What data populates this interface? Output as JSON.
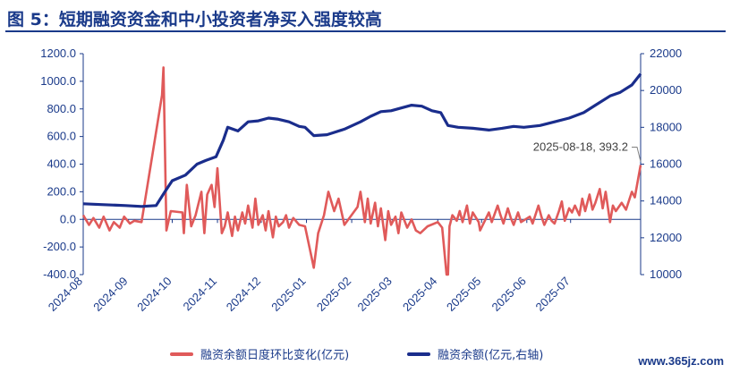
{
  "title": "图 5：短期融资资金和中小投资者净买入强度较高",
  "watermark": "www.365jz.com",
  "chart_data": {
    "type": "line",
    "x_ticks": [
      "2024-08",
      "2024-09",
      "2024-10",
      "2024-11",
      "2024-12",
      "2025-01",
      "2025-02",
      "2025-03",
      "2025-04",
      "2025-05",
      "2025-06",
      "2025-07"
    ],
    "x_range": [
      "2024-08-01",
      "2025-08-18"
    ],
    "y_left": {
      "ticks": [
        "1200.0",
        "1000.0",
        "800.0",
        "600.0",
        "400.0",
        "200.0",
        "0.0",
        "-200.0",
        "-400.0"
      ],
      "ylim": [
        -400,
        1200
      ]
    },
    "y_right": {
      "ticks": [
        "22000",
        "20000",
        "18000",
        "16000",
        "14000",
        "12000",
        "10000"
      ],
      "ylim": [
        10000,
        22000
      ]
    },
    "annotation": {
      "text": "2025-08-18, 393.2",
      "date": "2025-08-18",
      "value": 393.2
    },
    "series": [
      {
        "name": "融资余额日度环比变化(亿元)",
        "axis": "left",
        "color": "#e05a5a",
        "points": [
          [
            "2024-08-01",
            30
          ],
          [
            "2024-08-05",
            -40
          ],
          [
            "2024-08-08",
            10
          ],
          [
            "2024-08-12",
            -60
          ],
          [
            "2024-08-15",
            20
          ],
          [
            "2024-08-19",
            -80
          ],
          [
            "2024-08-22",
            -20
          ],
          [
            "2024-08-26",
            -60
          ],
          [
            "2024-08-29",
            20
          ],
          [
            "2024-09-02",
            -30
          ],
          [
            "2024-09-05",
            -10
          ],
          [
            "2024-09-10",
            -20
          ],
          [
            "2024-09-24",
            900
          ],
          [
            "2024-09-25",
            1100
          ],
          [
            "2024-09-27",
            -80
          ],
          [
            "2024-09-30",
            60
          ],
          [
            "2024-10-08",
            50
          ],
          [
            "2024-10-09",
            -100
          ],
          [
            "2024-10-11",
            250
          ],
          [
            "2024-10-14",
            -50
          ],
          [
            "2024-10-17",
            30
          ],
          [
            "2024-10-21",
            200
          ],
          [
            "2024-10-23",
            -100
          ],
          [
            "2024-10-25",
            180
          ],
          [
            "2024-10-28",
            250
          ],
          [
            "2024-10-30",
            90
          ],
          [
            "2024-11-01",
            370
          ],
          [
            "2024-11-04",
            -100
          ],
          [
            "2024-11-06",
            -50
          ],
          [
            "2024-11-08",
            50
          ],
          [
            "2024-11-11",
            -120
          ],
          [
            "2024-11-13",
            20
          ],
          [
            "2024-11-15",
            -80
          ],
          [
            "2024-11-18",
            50
          ],
          [
            "2024-11-20",
            -30
          ],
          [
            "2024-11-22",
            100
          ],
          [
            "2024-11-25",
            -60
          ],
          [
            "2024-11-27",
            150
          ],
          [
            "2024-11-29",
            -40
          ],
          [
            "2024-12-02",
            30
          ],
          [
            "2024-12-04",
            -80
          ],
          [
            "2024-12-06",
            60
          ],
          [
            "2024-12-09",
            -130
          ],
          [
            "2024-12-11",
            20
          ],
          [
            "2024-12-13",
            -50
          ],
          [
            "2024-12-16",
            -20
          ],
          [
            "2024-12-18",
            30
          ],
          [
            "2024-12-20",
            -60
          ],
          [
            "2024-12-23",
            10
          ],
          [
            "2024-12-27",
            -40
          ],
          [
            "2024-12-31",
            -50
          ],
          [
            "2025-01-03",
            -200
          ],
          [
            "2025-01-06",
            -350
          ],
          [
            "2025-01-09",
            -100
          ],
          [
            "2025-01-13",
            30
          ],
          [
            "2025-01-16",
            200
          ],
          [
            "2025-01-20",
            60
          ],
          [
            "2025-01-23",
            150
          ],
          [
            "2025-01-27",
            -40
          ],
          [
            "2025-02-05",
            90
          ],
          [
            "2025-02-07",
            200
          ],
          [
            "2025-02-10",
            -20
          ],
          [
            "2025-02-12",
            150
          ],
          [
            "2025-02-14",
            -30
          ],
          [
            "2025-02-17",
            120
          ],
          [
            "2025-02-19",
            -50
          ],
          [
            "2025-02-21",
            80
          ],
          [
            "2025-02-24",
            -150
          ],
          [
            "2025-02-26",
            60
          ],
          [
            "2025-02-28",
            -40
          ],
          [
            "2025-03-03",
            20
          ],
          [
            "2025-03-05",
            -100
          ],
          [
            "2025-03-07",
            50
          ],
          [
            "2025-03-11",
            -60
          ],
          [
            "2025-03-14",
            0
          ],
          [
            "2025-03-17",
            -80
          ],
          [
            "2025-03-20",
            -100
          ],
          [
            "2025-03-25",
            -50
          ],
          [
            "2025-04-01",
            -20
          ],
          [
            "2025-04-04",
            -60
          ],
          [
            "2025-04-07",
            -400
          ],
          [
            "2025-04-08",
            -400
          ],
          [
            "2025-04-09",
            -50
          ],
          [
            "2025-04-11",
            30
          ],
          [
            "2025-04-14",
            -10
          ],
          [
            "2025-04-16",
            60
          ],
          [
            "2025-04-18",
            -20
          ],
          [
            "2025-04-21",
            100
          ],
          [
            "2025-04-23",
            -30
          ],
          [
            "2025-04-25",
            50
          ],
          [
            "2025-04-29",
            -20
          ],
          [
            "2025-04-30",
            -80
          ],
          [
            "2025-05-06",
            50
          ],
          [
            "2025-05-08",
            -20
          ],
          [
            "2025-05-12",
            100
          ],
          [
            "2025-05-14",
            30
          ],
          [
            "2025-05-16",
            -30
          ],
          [
            "2025-05-19",
            80
          ],
          [
            "2025-05-21",
            10
          ],
          [
            "2025-05-23",
            -40
          ],
          [
            "2025-05-26",
            50
          ],
          [
            "2025-05-28",
            -20
          ],
          [
            "2025-06-03",
            20
          ],
          [
            "2025-06-05",
            -30
          ],
          [
            "2025-06-09",
            100
          ],
          [
            "2025-06-11",
            20
          ],
          [
            "2025-06-13",
            -40
          ],
          [
            "2025-06-16",
            30
          ],
          [
            "2025-06-18",
            -10
          ],
          [
            "2025-06-20",
            -30
          ],
          [
            "2025-06-23",
            60
          ],
          [
            "2025-06-25",
            130
          ],
          [
            "2025-06-27",
            -10
          ],
          [
            "2025-06-30",
            80
          ],
          [
            "2025-07-02",
            50
          ],
          [
            "2025-07-04",
            100
          ],
          [
            "2025-07-07",
            30
          ],
          [
            "2025-07-09",
            150
          ],
          [
            "2025-07-11",
            60
          ],
          [
            "2025-07-14",
            180
          ],
          [
            "2025-07-16",
            70
          ],
          [
            "2025-07-18",
            120
          ],
          [
            "2025-07-21",
            220
          ],
          [
            "2025-07-23",
            80
          ],
          [
            "2025-07-25",
            200
          ],
          [
            "2025-07-28",
            -20
          ],
          [
            "2025-07-30",
            100
          ],
          [
            "2025-08-01",
            60
          ],
          [
            "2025-08-05",
            120
          ],
          [
            "2025-08-08",
            70
          ],
          [
            "2025-08-12",
            200
          ],
          [
            "2025-08-14",
            160
          ],
          [
            "2025-08-18",
            393.2
          ]
        ]
      },
      {
        "name": "融资余额(亿元,右轴)",
        "axis": "right",
        "color": "#1a2d8c",
        "points": [
          [
            "2024-08-01",
            13850
          ],
          [
            "2024-08-15",
            13800
          ],
          [
            "2024-08-30",
            13750
          ],
          [
            "2024-09-10",
            13700
          ],
          [
            "2024-09-20",
            13750
          ],
          [
            "2024-09-26",
            14500
          ],
          [
            "2024-10-01",
            15100
          ],
          [
            "2024-10-10",
            15400
          ],
          [
            "2024-10-18",
            16000
          ],
          [
            "2024-10-24",
            16200
          ],
          [
            "2024-10-31",
            16400
          ],
          [
            "2024-11-05",
            17300
          ],
          [
            "2024-11-08",
            18000
          ],
          [
            "2024-11-15",
            17800
          ],
          [
            "2024-11-22",
            18300
          ],
          [
            "2024-11-29",
            18350
          ],
          [
            "2024-12-06",
            18500
          ],
          [
            "2024-12-12",
            18450
          ],
          [
            "2024-12-20",
            18300
          ],
          [
            "2024-12-27",
            18050
          ],
          [
            "2024-12-31",
            18000
          ],
          [
            "2025-01-06",
            17550
          ],
          [
            "2025-01-15",
            17600
          ],
          [
            "2025-01-27",
            17900
          ],
          [
            "2025-02-07",
            18300
          ],
          [
            "2025-02-14",
            18600
          ],
          [
            "2025-02-21",
            18850
          ],
          [
            "2025-02-28",
            18900
          ],
          [
            "2025-03-07",
            19050
          ],
          [
            "2025-03-14",
            19200
          ],
          [
            "2025-03-21",
            19150
          ],
          [
            "2025-03-28",
            18900
          ],
          [
            "2025-04-03",
            18800
          ],
          [
            "2025-04-08",
            18100
          ],
          [
            "2025-04-15",
            18000
          ],
          [
            "2025-04-25",
            17950
          ],
          [
            "2025-05-06",
            17850
          ],
          [
            "2025-05-15",
            17950
          ],
          [
            "2025-05-23",
            18050
          ],
          [
            "2025-05-30",
            18000
          ],
          [
            "2025-06-10",
            18100
          ],
          [
            "2025-06-20",
            18300
          ],
          [
            "2025-06-30",
            18500
          ],
          [
            "2025-07-10",
            18800
          ],
          [
            "2025-07-18",
            19200
          ],
          [
            "2025-07-28",
            19700
          ],
          [
            "2025-08-04",
            19900
          ],
          [
            "2025-08-12",
            20300
          ],
          [
            "2025-08-18",
            20900
          ]
        ]
      }
    ]
  }
}
